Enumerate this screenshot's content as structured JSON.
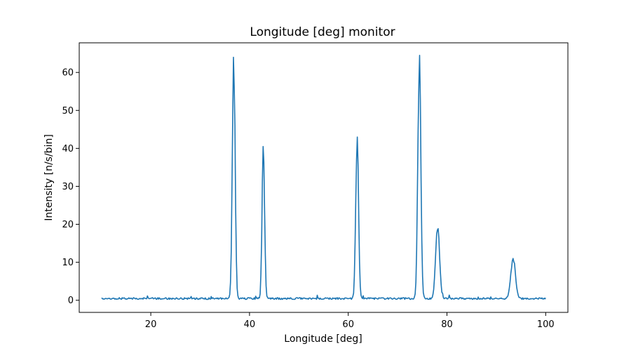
{
  "chart_data": {
    "type": "line",
    "title": "Longitude [deg] monitor",
    "xlabel": "Longitude [deg]",
    "ylabel": "Intensity [n/s/bin]",
    "xlim": [
      5.5,
      104.5
    ],
    "ylim": [
      -3.2,
      67.8
    ],
    "xticks": [
      20,
      40,
      60,
      80,
      100
    ],
    "yticks": [
      0,
      10,
      20,
      30,
      40,
      50,
      60
    ],
    "grid": false,
    "color": "#1f77b4",
    "baseline": 0.45,
    "noise_amplitude": 0.45,
    "x_start": 10,
    "x_end": 100,
    "points": 600,
    "peaks": [
      {
        "center": 36.8,
        "height": 64.0,
        "width": 0.28
      },
      {
        "center": 42.8,
        "height": 40.5,
        "width": 0.25
      },
      {
        "center": 61.8,
        "height": 43.0,
        "width": 0.28
      },
      {
        "center": 74.4,
        "height": 64.5,
        "width": 0.3
      },
      {
        "center": 78.1,
        "height": 18.5,
        "width": 0.4
      },
      {
        "center": 93.4,
        "height": 11.0,
        "width": 0.45
      }
    ]
  }
}
